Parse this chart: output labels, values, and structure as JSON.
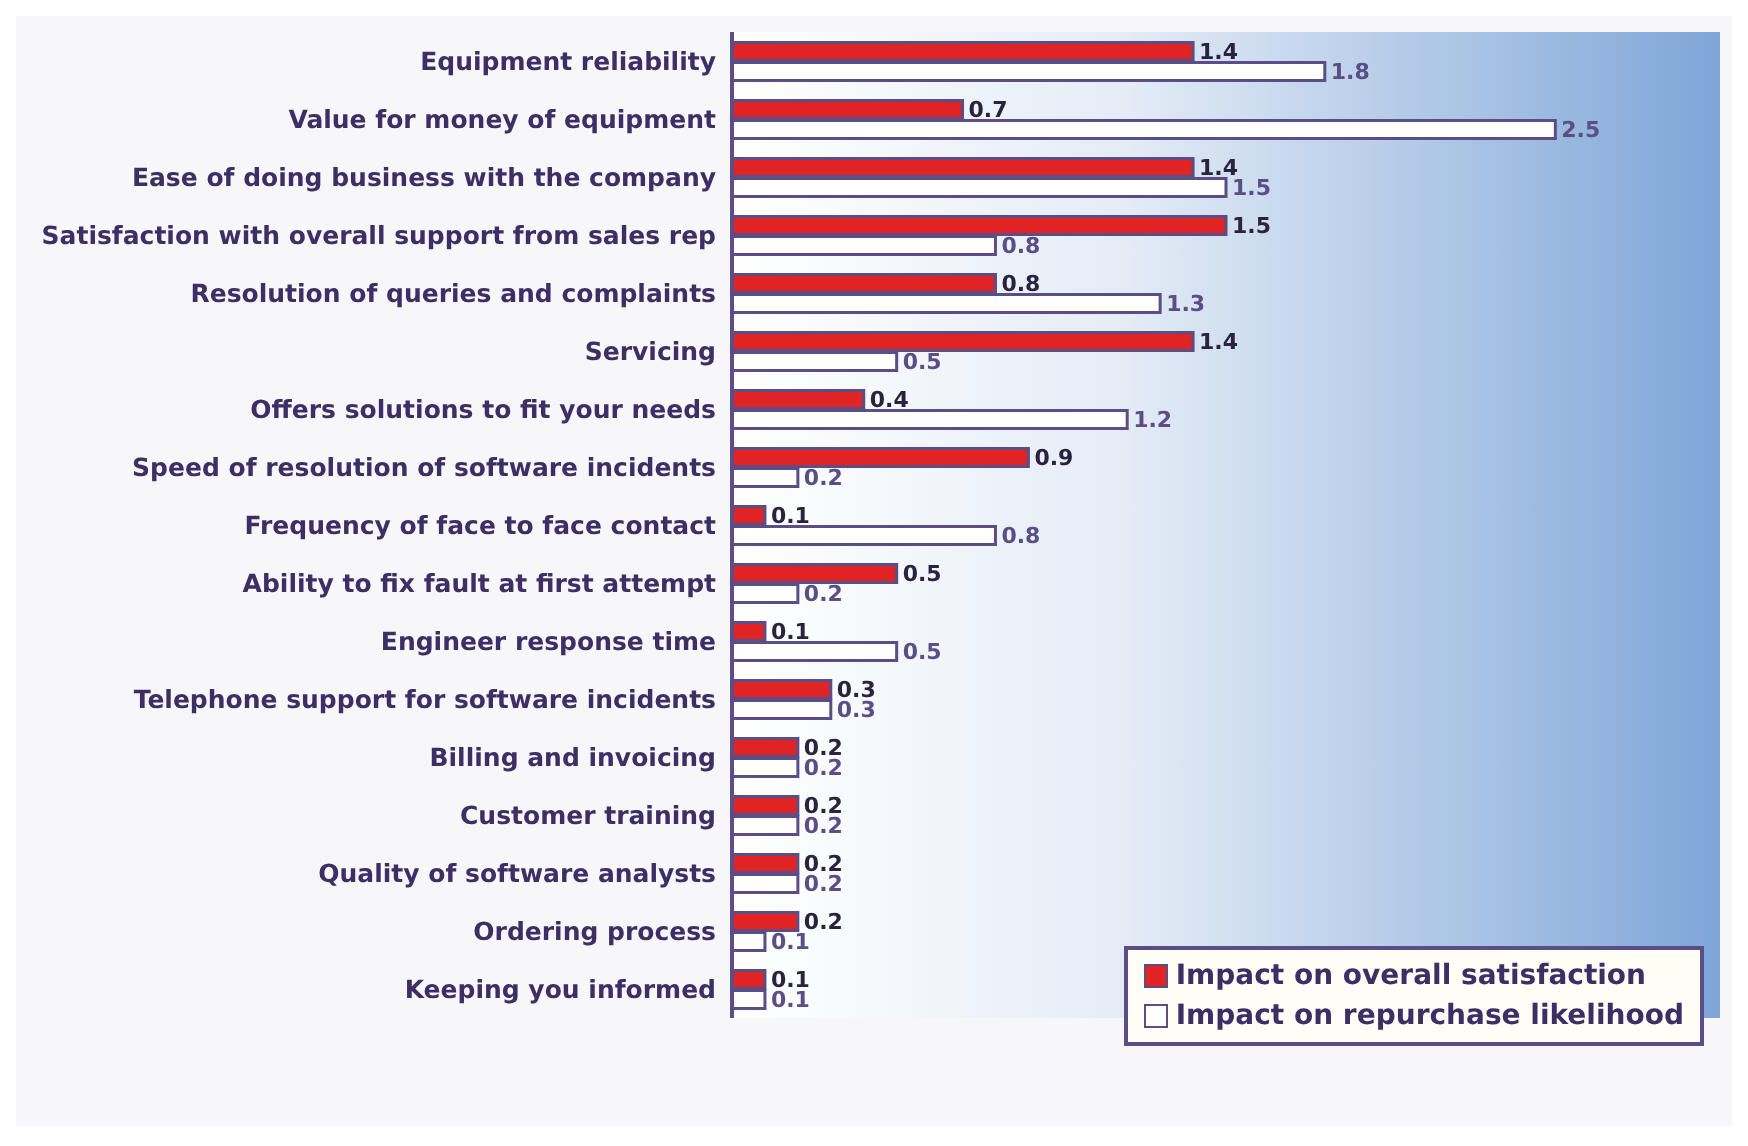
{
  "chart_data": {
    "type": "bar",
    "orientation": "horizontal",
    "data_labels": true,
    "legend": "bottom right",
    "grid": false,
    "categories": [
      "Equipment reliability",
      "Value for money of equipment",
      "Ease of doing business with the company",
      "Satisfaction with overall support from sales rep",
      "Resolution of queries and complaints",
      "Servicing",
      "Offers solutions to fit your needs",
      "Speed of resolution of software incidents",
      "Frequency of face to face contact",
      "Ability to fix fault at first attempt",
      "Engineer response time",
      "Telephone support for software incidents",
      "Billing and invoicing",
      "Customer training",
      "Quality of software analysts",
      "Ordering process",
      "Keeping you informed"
    ],
    "series": [
      {
        "name": "Impact on overall satisfaction",
        "color": "#e02424",
        "values": [
          1.4,
          0.7,
          1.4,
          1.5,
          0.8,
          1.4,
          0.4,
          0.9,
          0.1,
          0.5,
          0.1,
          0.3,
          0.2,
          0.2,
          0.2,
          0.2,
          0.1
        ]
      },
      {
        "name": "Impact on repurchase likelihood",
        "color": "#ffffff",
        "values": [
          1.8,
          2.5,
          1.5,
          0.8,
          1.3,
          0.5,
          1.2,
          0.2,
          0.8,
          0.2,
          0.5,
          0.3,
          0.2,
          0.2,
          0.2,
          0.1,
          0.1
        ]
      }
    ]
  }
}
